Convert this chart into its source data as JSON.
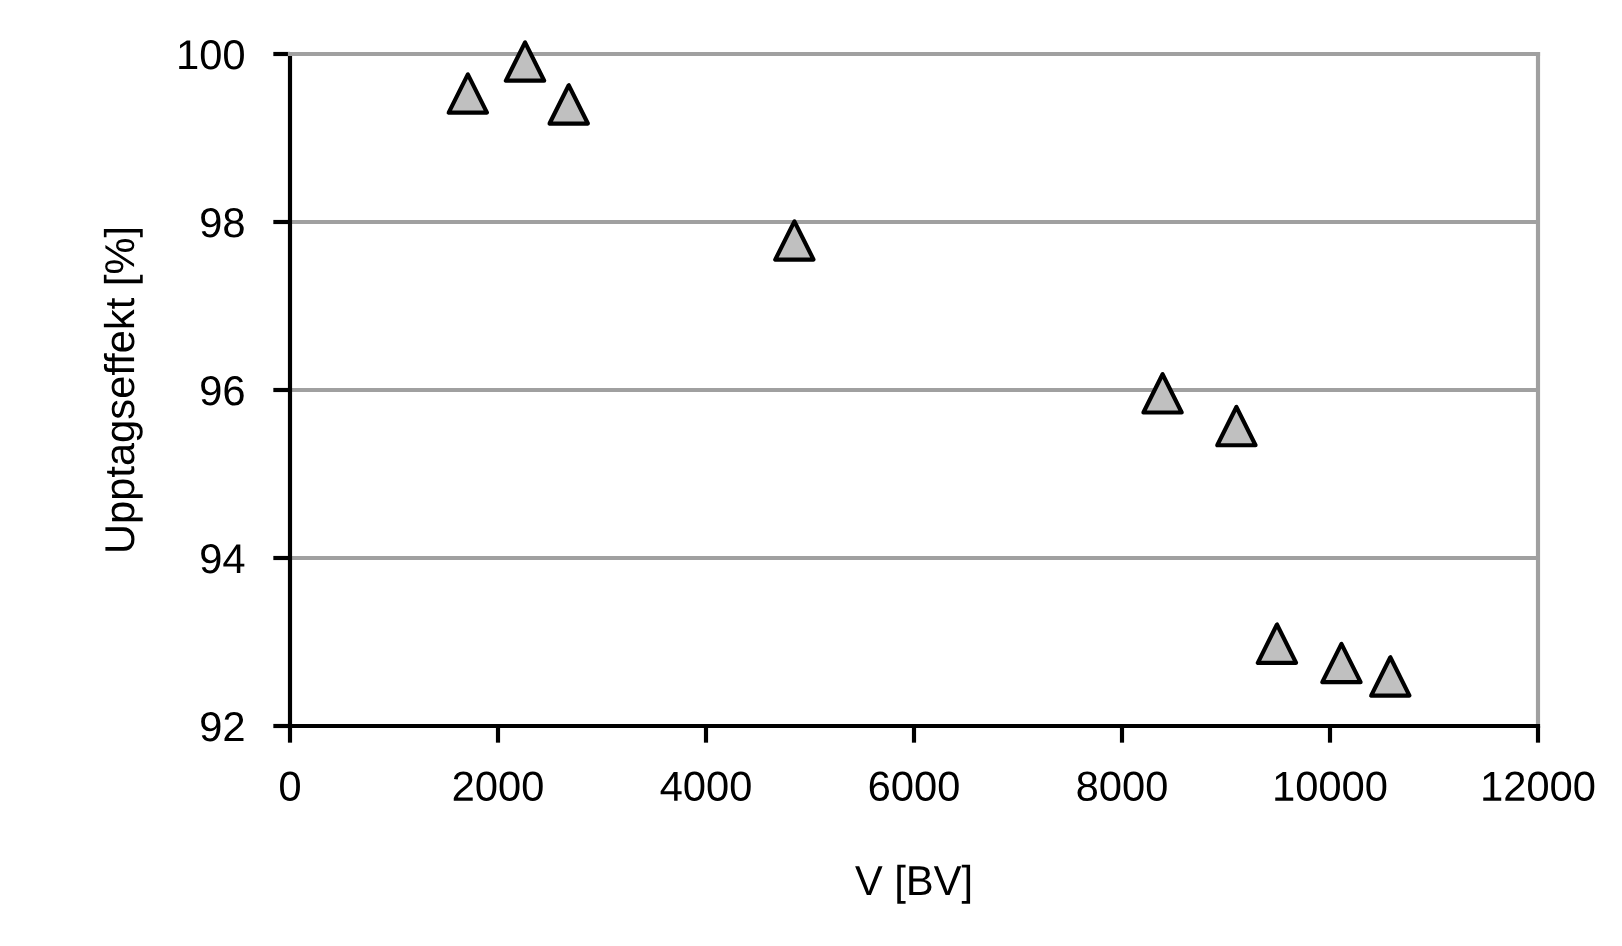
{
  "chart_data": {
    "type": "scatter",
    "xlabel": "V [BV]",
    "ylabel": "Upptagseffekt [%]",
    "x": [
      1710,
      2260,
      2680,
      4850,
      8390,
      9100,
      9490,
      10110,
      10580
    ],
    "series": [
      {
        "color": "#c0c0c0",
        "values": [
          99.53,
          99.91,
          99.4,
          97.78,
          95.96,
          95.57,
          92.98,
          92.75,
          92.59
        ]
      }
    ],
    "xlim": [
      0,
      12000
    ],
    "xticks": [
      0,
      2000,
      4000,
      6000,
      8000,
      10000,
      12000
    ],
    "ylim": [
      92,
      100
    ],
    "yticks": [
      92,
      94,
      96,
      98,
      100
    ],
    "grid": "y",
    "marker": "triangle",
    "legend": false
  }
}
